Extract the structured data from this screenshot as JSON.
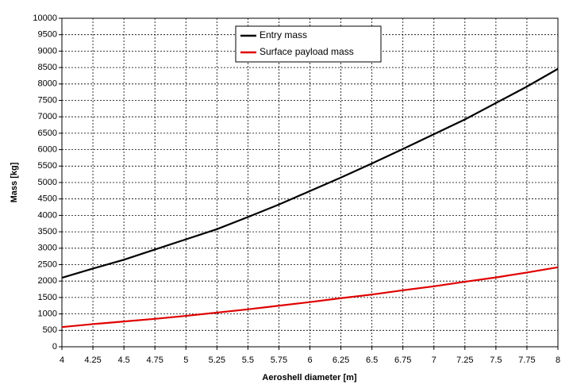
{
  "chart_data": {
    "type": "line",
    "xlabel": "Aeroshell diameter [m]",
    "ylabel": "Mass [kg]",
    "x": [
      4,
      4.25,
      4.5,
      4.75,
      5,
      5.25,
      5.5,
      5.75,
      6,
      6.25,
      6.5,
      6.75,
      7,
      7.25,
      7.5,
      7.75,
      8
    ],
    "series": [
      {
        "name": "Entry mass",
        "color": "#000000",
        "values": [
          2100,
          2380,
          2650,
          2960,
          3270,
          3580,
          3950,
          4330,
          4740,
          5150,
          5580,
          6020,
          6470,
          6920,
          7420,
          7920,
          8460
        ]
      },
      {
        "name": "Surface payload mass",
        "color": "#e00000",
        "values": [
          600,
          690,
          770,
          850,
          940,
          1040,
          1140,
          1250,
          1360,
          1480,
          1590,
          1720,
          1840,
          1980,
          2110,
          2260,
          2420
        ]
      }
    ],
    "xlim": [
      4,
      8
    ],
    "xticks": [
      4,
      4.25,
      4.5,
      4.75,
      5,
      5.25,
      5.5,
      5.75,
      6,
      6.25,
      6.5,
      6.75,
      7,
      7.25,
      7.5,
      7.75,
      8
    ],
    "ylim": [
      0,
      10000
    ],
    "yticks": [
      0,
      500,
      1000,
      1500,
      2000,
      2500,
      3000,
      3500,
      4000,
      4500,
      5000,
      5500,
      6000,
      6500,
      7000,
      7500,
      8000,
      8500,
      9000,
      9500,
      10000
    ],
    "grid": true,
    "legend": "top"
  }
}
